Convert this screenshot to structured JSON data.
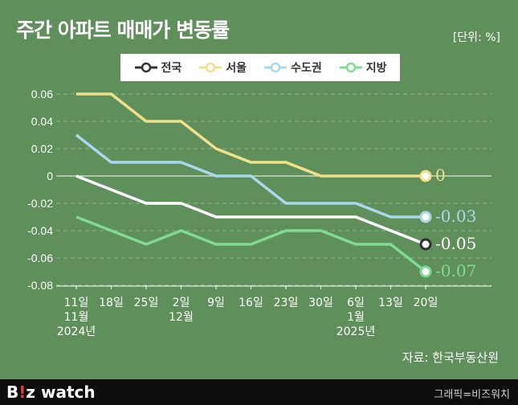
{
  "header": {
    "title": "주간 아파트 매매가 변동률",
    "unit": "[단위: %]"
  },
  "source": "자료: 한국부동산원",
  "footer": {
    "logo_b": "B",
    "logo_i": "!",
    "logo_z": "z",
    "logo_rest": "watch",
    "credit": "그래픽=비즈워치"
  },
  "chart_data": {
    "type": "line",
    "title": "주간 아파트 매매가 변동률",
    "unit": "[단위: %]",
    "x_labels": [
      [
        "11일",
        "11월",
        "2024년"
      ],
      [
        "18일"
      ],
      [
        "25일"
      ],
      [
        "2일",
        "12월"
      ],
      [
        "9일"
      ],
      [
        "16일"
      ],
      [
        "23일"
      ],
      [
        "30일"
      ],
      [
        "6일",
        "1월",
        "2025년"
      ],
      [
        "13일"
      ],
      [
        "20일"
      ]
    ],
    "ylim": [
      -0.08,
      0.06
    ],
    "yticks": [
      "0.06",
      "0.04",
      "0.02",
      "0",
      "-0.02",
      "-0.04",
      "-0.06",
      "-0.08"
    ],
    "ytick_values": [
      0.06,
      0.04,
      0.02,
      0,
      -0.02,
      -0.04,
      -0.06,
      -0.08
    ],
    "grid": true,
    "legend_position": "top",
    "series": [
      {
        "name": "전국",
        "color": "#ffffff",
        "values": [
          0,
          -0.01,
          -0.02,
          -0.02,
          -0.03,
          -0.03,
          -0.03,
          -0.03,
          -0.03,
          -0.04,
          -0.05
        ],
        "end_label": "-0.05"
      },
      {
        "name": "서울",
        "color": "#f0e08a",
        "values": [
          0.06,
          0.06,
          0.04,
          0.04,
          0.02,
          0.01,
          0.01,
          0,
          0,
          0,
          0
        ],
        "end_label": "0"
      },
      {
        "name": "수도권",
        "color": "#a9d8ec",
        "values": [
          0.03,
          0.01,
          0.01,
          0.01,
          0,
          0,
          -0.02,
          -0.02,
          -0.02,
          -0.03,
          -0.03
        ],
        "end_label": "-0.03"
      },
      {
        "name": "지방",
        "color": "#7fdb8f",
        "values": [
          -0.03,
          -0.04,
          -0.05,
          -0.04,
          -0.05,
          -0.05,
          -0.04,
          -0.04,
          -0.05,
          -0.05,
          -0.07
        ],
        "end_label": "-0.07"
      }
    ]
  }
}
